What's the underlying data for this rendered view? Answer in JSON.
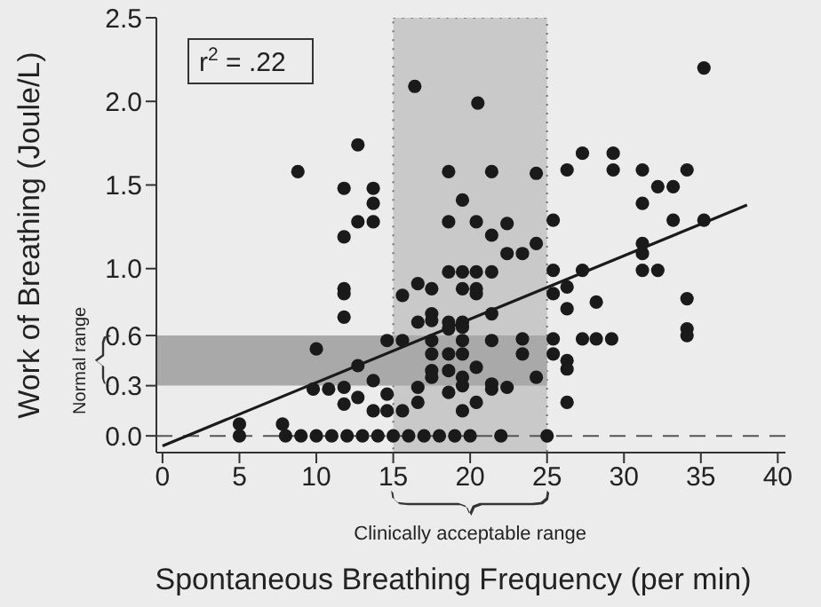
{
  "chart_data": {
    "type": "scatter",
    "xlabel": "Spontaneous Breathing Frequency (per min)",
    "ylabel": "Work of Breathing (Joule/L)",
    "xlim": [
      -0.4,
      40.5
    ],
    "ylim": [
      -0.1,
      2.5
    ],
    "xticks": [
      0,
      5,
      10,
      15,
      20,
      25,
      30,
      35,
      40
    ],
    "yticks": [
      {
        "value": 0,
        "label": "0.0"
      },
      {
        "value": 0.3,
        "label": "0.3"
      },
      {
        "value": 0.6,
        "label": "0.6"
      },
      {
        "value": 1,
        "label": "1.0"
      },
      {
        "value": 1.5,
        "label": "1.5"
      },
      {
        "value": 2,
        "label": "2.0"
      },
      {
        "value": 2.5,
        "label": "2.5"
      }
    ],
    "marker": "circle",
    "annotations": [
      "r$^{2}$ = .22",
      "Clinically acceptable range",
      "Normal range"
    ],
    "bands": [
      {
        "axis": "x",
        "from": 15,
        "to": 25,
        "color": "#c9c9c9"
      },
      {
        "axis": "y",
        "from": 0.3,
        "to": 0.6,
        "color": "#a9a9a9"
      }
    ],
    "ref_lines": [
      {
        "axis": "y",
        "value": 0,
        "line_style": "dashed",
        "color": "#555555"
      }
    ],
    "series": [
      {
        "color": "#1a1a1a",
        "x": [
          5,
          8,
          9,
          10,
          11,
          12,
          13,
          14,
          15,
          16,
          17,
          18,
          19,
          20,
          22,
          25,
          16.4,
          20.5,
          12.7,
          8.8,
          18.6,
          21.4,
          11.8,
          13.7,
          13.7,
          19.5,
          12.7,
          13.7,
          18.6,
          20.4,
          11.8,
          21.4,
          35.2,
          24.3,
          26.3,
          27.3,
          29.3,
          29.3,
          31.2,
          34.1,
          32.2,
          33.2,
          31.2,
          22.4,
          25.4,
          24.3,
          31.2,
          33.2,
          35.2,
          11.8,
          11.8,
          11.8,
          18.6,
          19.5,
          20.4,
          21.4,
          16.6,
          17.5,
          19.5,
          20.4,
          20.4,
          15.6,
          21.4,
          16.6,
          17.5,
          17.5,
          18.6,
          19.5,
          19.5,
          18.6,
          14.6,
          15.6,
          17.5,
          19.5,
          21.4,
          10,
          17.5,
          18.6,
          19.5,
          12.7,
          17.5,
          17.5,
          18.6,
          19.5,
          20.4,
          13.7,
          19.5,
          9.8,
          10.8,
          11.8,
          16.6,
          18.6,
          14.6,
          12.7,
          21.4,
          11.8,
          13.7,
          14.6,
          15.6,
          16.6,
          20.4,
          19.5,
          5,
          7.8,
          22.4,
          23.4,
          31.2,
          31.2,
          32.2,
          25.4,
          27.3,
          26.3,
          25.4,
          28.2,
          26.3,
          34.1,
          34.1,
          34.1,
          25.4,
          27.3,
          28.2,
          29.2,
          23.4,
          23.4,
          25.4,
          26.3,
          26.3,
          24.3,
          21.4,
          22.4,
          26.3
        ],
        "values": [
          0,
          0,
          0,
          0,
          0,
          0,
          0,
          0,
          0,
          0,
          0,
          0,
          0,
          0,
          0,
          0,
          2.09,
          1.99,
          1.74,
          1.58,
          1.58,
          1.58,
          1.48,
          1.48,
          1.39,
          1.41,
          1.28,
          1.28,
          1.28,
          1.28,
          1.19,
          1.2,
          2.2,
          1.57,
          1.59,
          1.69,
          1.69,
          1.59,
          1.59,
          1.59,
          1.49,
          1.49,
          1.39,
          1.27,
          1.29,
          1.15,
          1.15,
          1.29,
          1.29,
          0.88,
          0.85,
          0.71,
          0.98,
          0.98,
          0.98,
          0.98,
          0.91,
          0.88,
          0.88,
          0.88,
          0.85,
          0.84,
          0.73,
          0.68,
          0.73,
          0.69,
          0.68,
          0.68,
          0.65,
          0.64,
          0.57,
          0.57,
          0.57,
          0.57,
          0.57,
          0.52,
          0.49,
          0.49,
          0.49,
          0.42,
          0.39,
          0.35,
          0.39,
          0.35,
          0.41,
          0.33,
          0.3,
          0.28,
          0.28,
          0.29,
          0.29,
          0.26,
          0.25,
          0.23,
          0.28,
          0.19,
          0.15,
          0.15,
          0.15,
          0.2,
          0.2,
          0.15,
          0.07,
          0.07,
          1.09,
          1.09,
          1.09,
          0.99,
          0.99,
          0.99,
          0.99,
          0.89,
          0.85,
          0.8,
          0.76,
          0.82,
          0.64,
          0.6,
          0.58,
          0.58,
          0.58,
          0.58,
          0.58,
          0.49,
          0.49,
          0.45,
          0.4,
          0.35,
          0.31,
          0.29,
          0.2
        ]
      },
      {
        "type": "line",
        "color": "#1a1a1a",
        "marker": "none",
        "x": [
          0,
          38
        ],
        "values": [
          -0.06,
          1.38
        ]
      }
    ]
  }
}
